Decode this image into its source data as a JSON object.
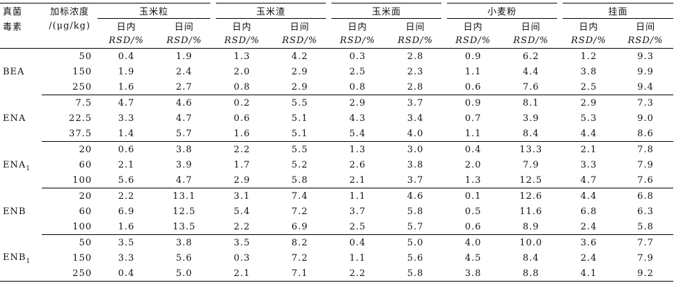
{
  "header": {
    "toxin_label_line1": "真菌",
    "toxin_label_line2": "毒素",
    "conc_label_line1": "加标浓度",
    "conc_label_line2": "/(μg/kg)",
    "matrices": [
      "玉米粒",
      "玉米渣",
      "玉米面",
      "小麦粉",
      "挂面"
    ],
    "intra_label": "日内",
    "inter_label": "日间",
    "rsd_label": "RSD/%"
  },
  "groups": [
    {
      "toxin": "BEA",
      "toxin_sub": "",
      "rows": [
        {
          "conc": "50",
          "vals": [
            "0.4",
            "1.9",
            "1.3",
            "4.2",
            "0.3",
            "2.8",
            "0.9",
            "6.2",
            "1.2",
            "9.3"
          ]
        },
        {
          "conc": "150",
          "vals": [
            "1.9",
            "2.4",
            "2.0",
            "2.9",
            "2.5",
            "2.3",
            "1.1",
            "4.4",
            "3.8",
            "9.9"
          ]
        },
        {
          "conc": "250",
          "vals": [
            "1.6",
            "2.7",
            "0.8",
            "2.9",
            "0.8",
            "2.8",
            "0.6",
            "7.6",
            "2.5",
            "9.4"
          ]
        }
      ]
    },
    {
      "toxin": "ENA",
      "toxin_sub": "",
      "rows": [
        {
          "conc": "7.5",
          "vals": [
            "4.7",
            "4.6",
            "0.2",
            "5.5",
            "2.9",
            "3.7",
            "0.9",
            "8.1",
            "2.9",
            "7.3"
          ]
        },
        {
          "conc": "22.5",
          "vals": [
            "3.3",
            "4.7",
            "0.6",
            "5.1",
            "4.3",
            "3.4",
            "0.7",
            "3.9",
            "5.3",
            "9.0"
          ]
        },
        {
          "conc": "37.5",
          "vals": [
            "1.4",
            "5.7",
            "1.6",
            "5.1",
            "5.4",
            "4.0",
            "1.1",
            "8.4",
            "4.4",
            "8.6"
          ]
        }
      ]
    },
    {
      "toxin": "ENA",
      "toxin_sub": "1",
      "rows": [
        {
          "conc": "20",
          "vals": [
            "0.6",
            "3.8",
            "2.2",
            "5.5",
            "1.3",
            "3.0",
            "0.4",
            "13.3",
            "2.1",
            "7.8"
          ]
        },
        {
          "conc": "60",
          "vals": [
            "2.1",
            "3.9",
            "1.7",
            "5.2",
            "2.6",
            "3.8",
            "2.0",
            "7.9",
            "3.3",
            "7.9"
          ]
        },
        {
          "conc": "100",
          "vals": [
            "5.6",
            "4.7",
            "2.9",
            "5.8",
            "2.1",
            "3.7",
            "1.3",
            "12.5",
            "4.7",
            "7.6"
          ]
        }
      ]
    },
    {
      "toxin": "ENB",
      "toxin_sub": "",
      "rows": [
        {
          "conc": "20",
          "vals": [
            "2.2",
            "13.1",
            "3.1",
            "7.4",
            "1.1",
            "4.6",
            "0.1",
            "12.6",
            "4.4",
            "6.8"
          ]
        },
        {
          "conc": "60",
          "vals": [
            "6.9",
            "12.5",
            "5.4",
            "7.2",
            "3.7",
            "5.8",
            "0.5",
            "11.6",
            "6.8",
            "6.3"
          ]
        },
        {
          "conc": "100",
          "vals": [
            "1.6",
            "13.5",
            "2.2",
            "6.9",
            "2.5",
            "5.7",
            "0.6",
            "8.9",
            "2.4",
            "5.8"
          ]
        }
      ]
    },
    {
      "toxin": "ENB",
      "toxin_sub": "1",
      "rows": [
        {
          "conc": "50",
          "vals": [
            "3.5",
            "3.8",
            "3.5",
            "8.2",
            "0.4",
            "5.0",
            "4.0",
            "10.0",
            "3.6",
            "7.7"
          ]
        },
        {
          "conc": "150",
          "vals": [
            "3.3",
            "5.6",
            "0.3",
            "7.2",
            "1.1",
            "5.6",
            "4.5",
            "8.4",
            "2.4",
            "7.9"
          ]
        },
        {
          "conc": "250",
          "vals": [
            "0.4",
            "5.0",
            "2.1",
            "7.1",
            "2.2",
            "5.8",
            "3.8",
            "8.8",
            "4.1",
            "9.2"
          ]
        }
      ]
    }
  ]
}
